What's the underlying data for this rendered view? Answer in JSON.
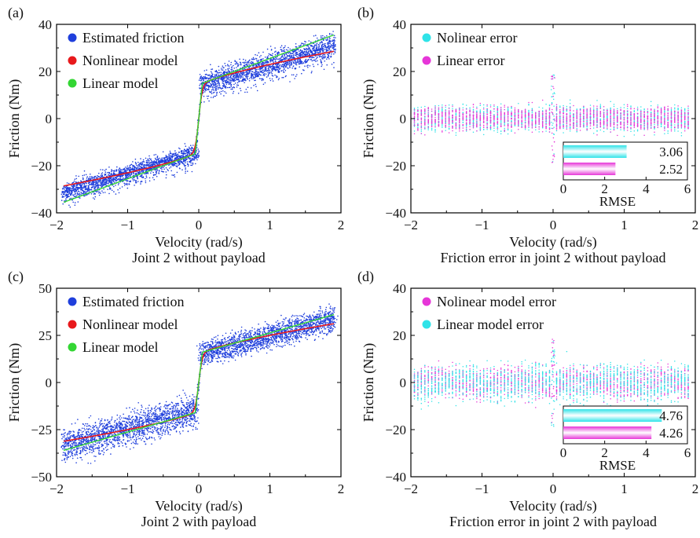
{
  "chart_data": [
    {
      "id": "a",
      "type": "scatter",
      "panel_label": "(a)",
      "caption": "Joint 2 without payload",
      "xlabel": "Velocity (rad/s)",
      "ylabel": "Friction (Nm)",
      "xlim": [
        -2,
        2
      ],
      "ylim": [
        -40,
        40
      ],
      "xticks": [
        -2,
        -1,
        0,
        1,
        2
      ],
      "yticks": [
        -40,
        -20,
        0,
        20,
        40
      ],
      "tick_labels_x": [
        "−2",
        "−1",
        "0",
        "1",
        "2"
      ],
      "tick_labels_y": [
        "−40",
        "−20",
        "0",
        "20",
        "40"
      ],
      "legend_position": "top-left",
      "series": [
        {
          "name": "Estimated friction",
          "color": "#1f3fdc",
          "kind": "scatter-band",
          "band": {
            "neg_range": [
              -1.9,
              -0.03
            ],
            "pos_range": [
              0.03,
              1.9
            ],
            "spread": 3.5
          },
          "model": {
            "c": 14,
            "k": 9,
            "m": 6
          }
        },
        {
          "name": "Nonlinear model",
          "color": "#e8191c",
          "kind": "curve",
          "model": {
            "type": "tanh-sqrt",
            "c": 14,
            "a": 20,
            "k": 9,
            "m": 6
          },
          "x_range": [
            -1.9,
            1.9
          ]
        },
        {
          "name": "Linear model",
          "color": "#33d633",
          "kind": "line-pieces",
          "pieces": [
            {
              "x": [
                -1.9,
                -0.05
              ],
              "y": [
                -35.5,
                -15
              ]
            },
            {
              "x": [
                -0.05,
                0.05
              ],
              "y": [
                -15,
                15
              ]
            },
            {
              "x": [
                0.05,
                1.9
              ],
              "y": [
                15,
                35.5
              ]
            }
          ]
        }
      ]
    },
    {
      "id": "b",
      "type": "scatter",
      "panel_label": "(b)",
      "caption": "Friction error in joint 2 without payload",
      "xlabel": "Velocity (rad/s)",
      "ylabel": "Friction (Nm)",
      "xlim": [
        -2,
        2
      ],
      "ylim": [
        -40,
        40
      ],
      "xticks": [
        -2,
        -1,
        0,
        1,
        2
      ],
      "yticks": [
        -40,
        -20,
        0,
        20,
        40
      ],
      "tick_labels_x": [
        "−2",
        "−1",
        "0",
        "1",
        "2"
      ],
      "tick_labels_y": [
        "−40",
        "−20",
        "0",
        "20",
        "40"
      ],
      "legend_position": "top-left",
      "series": [
        {
          "name": "Nolinear error",
          "color": "#2fe3e8",
          "kind": "error-band",
          "spread": 5
        },
        {
          "name": "Linear error",
          "color": "#e636d8",
          "kind": "error-band",
          "spread": 4.5
        }
      ],
      "inset": {
        "title": "RMSE",
        "xlim": [
          0,
          6
        ],
        "xticks": [
          0,
          2,
          4,
          6
        ],
        "bars": [
          {
            "label": "3.06",
            "value": 3.06,
            "color": "#2fe3e8"
          },
          {
            "label": "2.52",
            "value": 2.52,
            "color": "#e636d8"
          }
        ]
      }
    },
    {
      "id": "c",
      "type": "scatter",
      "panel_label": "(c)",
      "caption": "Joint 2 with payload",
      "xlabel": "Velocity (rad/s)",
      "ylabel": "Friction (Nm)",
      "xlim": [
        -2,
        2
      ],
      "ylim": [
        -50,
        50
      ],
      "xticks": [
        -2,
        -1,
        0,
        1,
        2
      ],
      "yticks": [
        -50,
        -25,
        0,
        25,
        50
      ],
      "tick_labels_x": [
        "−2",
        "−1",
        "0",
        "1",
        "2"
      ],
      "tick_labels_y": [
        "−50",
        "−25",
        "0",
        "25",
        "50"
      ],
      "legend_position": "top-left",
      "series": [
        {
          "name": "Estimated friction",
          "color": "#1f3fdc",
          "kind": "scatter-band",
          "band": {
            "neg_range": [
              -1.9,
              -0.03
            ],
            "pos_range": [
              0.03,
              1.9
            ],
            "spread": 5
          },
          "model": {
            "c": 15,
            "k": 10,
            "m": 7
          }
        },
        {
          "name": "Nonlinear model",
          "color": "#e8191c",
          "kind": "curve",
          "model": {
            "type": "tanh-sqrt",
            "c": 15,
            "a": 20,
            "k": 10,
            "m": 7
          },
          "x_range": [
            -1.9,
            1.9
          ]
        },
        {
          "name": "Linear model",
          "color": "#33d633",
          "kind": "line-pieces",
          "pieces": [
            {
              "x": [
                -1.9,
                -0.05
              ],
              "y": [
                -36,
                -16
              ]
            },
            {
              "x": [
                -0.05,
                0.05
              ],
              "y": [
                -16,
                16
              ]
            },
            {
              "x": [
                0.05,
                1.9
              ],
              "y": [
                16,
                36
              ]
            }
          ]
        }
      ]
    },
    {
      "id": "d",
      "type": "scatter",
      "panel_label": "(d)",
      "caption": "Friction error in joint 2 with payload",
      "xlabel": "Velocity (rad/s)",
      "ylabel": "Friction (Nm)",
      "xlim": [
        -2,
        2
      ],
      "ylim": [
        -40,
        40
      ],
      "xticks": [
        -2,
        -1,
        0,
        1,
        2
      ],
      "yticks": [
        -40,
        -20,
        0,
        20,
        40
      ],
      "tick_labels_x": [
        "−2",
        "−1",
        "0",
        "1",
        "2"
      ],
      "tick_labels_y": [
        "−40",
        "−20",
        "0",
        "20",
        "40"
      ],
      "legend_position": "top-left",
      "series": [
        {
          "name": "Nolinear model error",
          "color": "#e636d8",
          "kind": "error-band",
          "spread": 6
        },
        {
          "name": "Linear model error",
          "color": "#2fe3e8",
          "kind": "error-band",
          "spread": 7
        }
      ],
      "inset": {
        "title": "RMSE",
        "xlim": [
          0,
          6
        ],
        "xticks": [
          0,
          2,
          4,
          6
        ],
        "bars": [
          {
            "label": "4.76",
            "value": 4.76,
            "color": "#2fe3e8"
          },
          {
            "label": "4.26",
            "value": 4.26,
            "color": "#e636d8"
          }
        ]
      }
    }
  ]
}
